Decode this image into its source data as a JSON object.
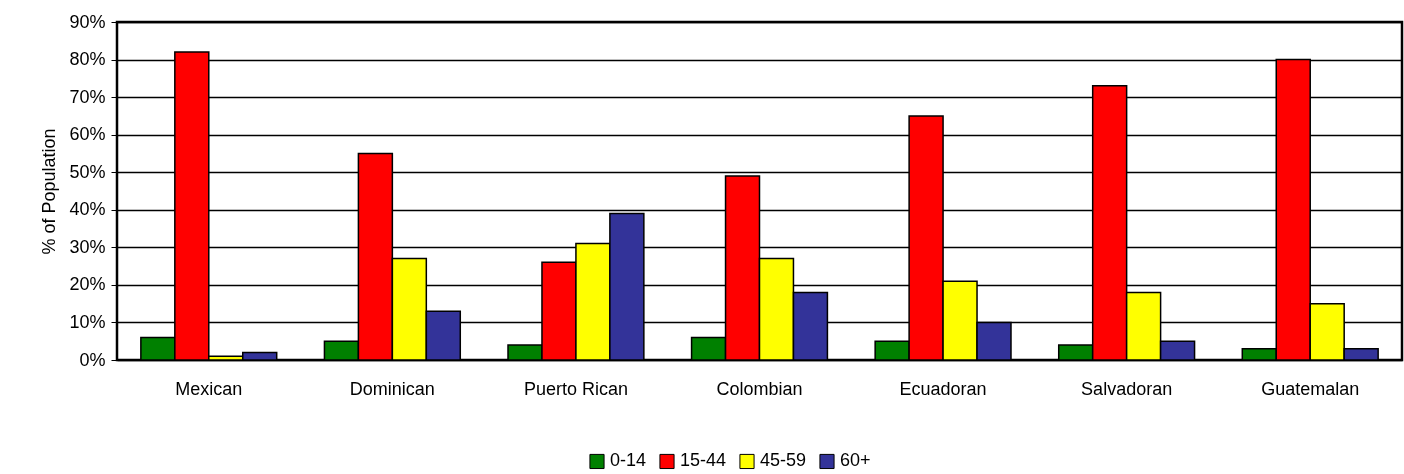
{
  "chart_data": {
    "type": "bar",
    "ylabel": "% of Population",
    "categories": [
      "Mexican",
      "Dominican",
      "Puerto Rican",
      "Colombian",
      "Ecuadoran",
      "Salvadoran",
      "Guatemalan"
    ],
    "series": [
      {
        "name": "0-14",
        "color": "#008000",
        "values": [
          6,
          5,
          4,
          6,
          5,
          4,
          3
        ]
      },
      {
        "name": "15-44",
        "color": "#ff0000",
        "values": [
          82,
          55,
          26,
          49,
          65,
          73,
          80
        ]
      },
      {
        "name": "45-59",
        "color": "#ffff00",
        "values": [
          1,
          27,
          31,
          27,
          21,
          18,
          15
        ]
      },
      {
        "name": "60+",
        "color": "#333399",
        "values": [
          2,
          13,
          39,
          18,
          10,
          5,
          3
        ]
      }
    ],
    "ylim": [
      0,
      90
    ],
    "yticks": [
      {
        "value": 0,
        "label": "0%"
      },
      {
        "value": 10,
        "label": "10%"
      },
      {
        "value": 20,
        "label": "20%"
      },
      {
        "value": 30,
        "label": "30%"
      },
      {
        "value": 40,
        "label": "40%"
      },
      {
        "value": 50,
        "label": "50%"
      },
      {
        "value": 60,
        "label": "60%"
      },
      {
        "value": 70,
        "label": "70%"
      },
      {
        "value": 80,
        "label": "80%"
      },
      {
        "value": 90,
        "label": "90%"
      }
    ],
    "grid": "y",
    "legend": "bottom"
  }
}
